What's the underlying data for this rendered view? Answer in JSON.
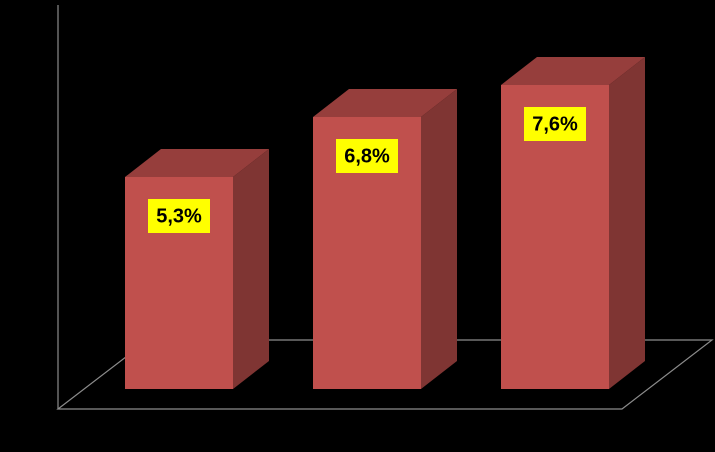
{
  "chart_data": {
    "type": "bar3d",
    "categories": [
      null,
      null,
      null
    ],
    "values": [
      5.3,
      6.8,
      7.6
    ],
    "value_labels": [
      "5,3%",
      "6,8%",
      "7,6%"
    ],
    "color": "#c0504d",
    "ylim": [
      0,
      9
    ]
  }
}
